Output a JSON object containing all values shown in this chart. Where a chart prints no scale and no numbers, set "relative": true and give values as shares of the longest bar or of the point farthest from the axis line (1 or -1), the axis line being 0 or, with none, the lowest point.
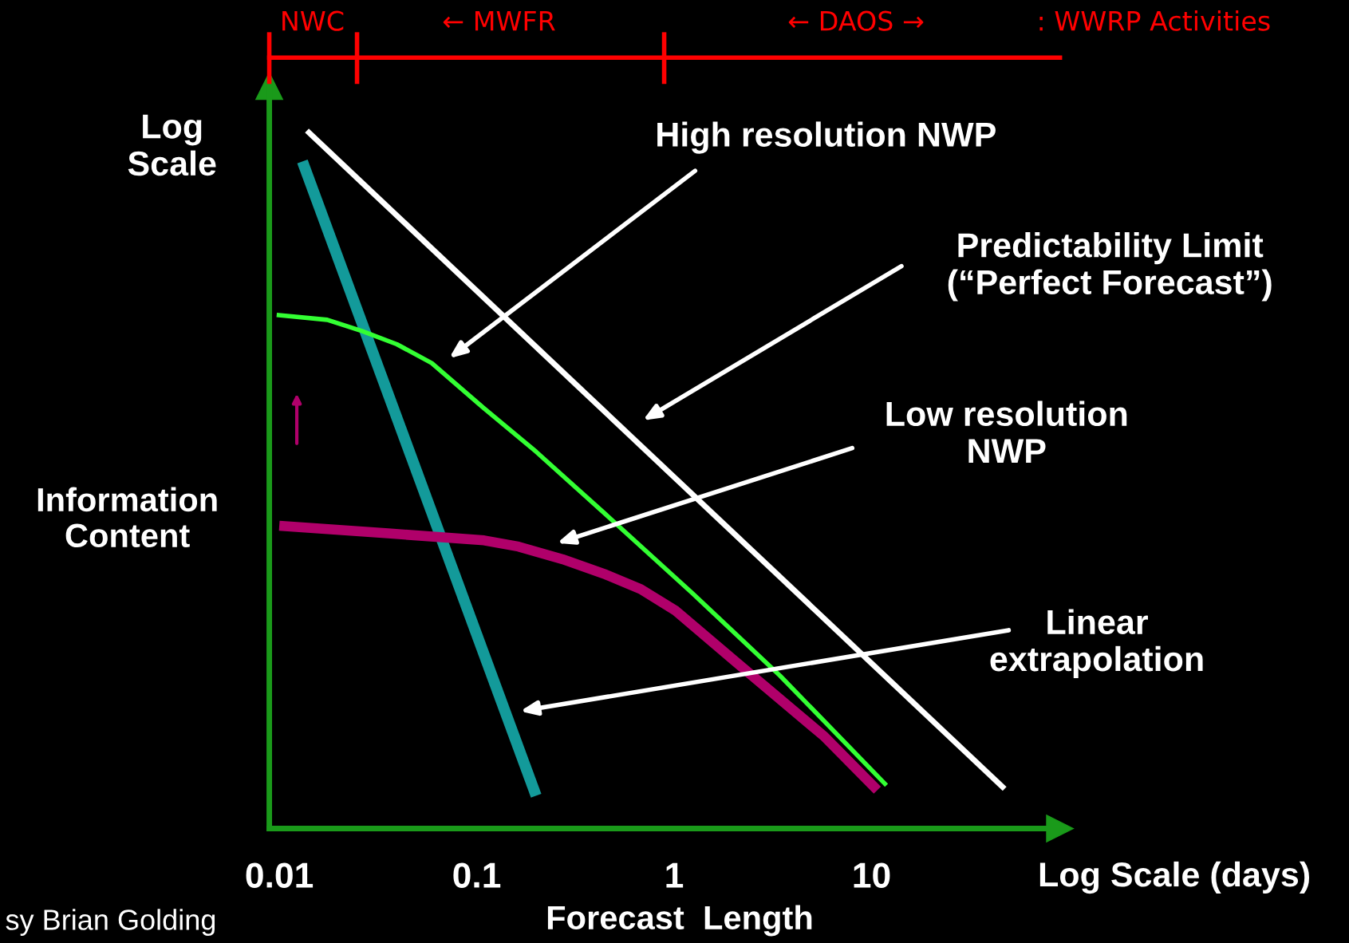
{
  "chart_data": {
    "type": "line",
    "relative": true,
    "log": "x",
    "xlabel": "Forecast  Length",
    "ylabel": "Information\nContent",
    "xlim": [
      0.0089,
      90
    ],
    "xticks": [
      0.01,
      0.1,
      1,
      10
    ],
    "grid": false,
    "series": [
      {
        "color": "#ffffff",
        "x": [
          0.0138,
          47.2
        ],
        "values": [
          1.0,
          0.057
        ]
      },
      {
        "color": "#139a9a",
        "x": [
          0.0131,
          0.2
        ],
        "values": [
          0.956,
          0.047
        ]
      },
      {
        "color": "#33ff33",
        "x": [
          0.0097,
          0.0175,
          0.0262,
          0.0394,
          0.0592,
          0.109,
          0.2,
          0.451,
          1.24,
          3.44,
          11.9
        ],
        "values": [
          0.736,
          0.729,
          0.713,
          0.694,
          0.667,
          0.602,
          0.54,
          0.45,
          0.337,
          0.219,
          0.062
        ]
      },
      {
        "color": "#b0006a",
        "x": [
          0.01,
          0.0356,
          0.109,
          0.163,
          0.272,
          0.451,
          0.678,
          1.02,
          2.07,
          5.71,
          10.7
        ],
        "values": [
          0.434,
          0.423,
          0.413,
          0.404,
          0.386,
          0.364,
          0.343,
          0.312,
          0.238,
          0.133,
          0.055
        ]
      }
    ],
    "annotations": [
      "High resolution NWP",
      "Predictability Limit\n(“Perfect Forecast”)",
      "Low resolution\nNWP",
      "Linear\nextrapolation",
      "Log\nScale",
      "Log Scale (days)",
      ": WWRP Activities",
      "sy Brian Golding",
      "NWC",
      "← MWFR",
      "← DAOS →"
    ]
  }
}
